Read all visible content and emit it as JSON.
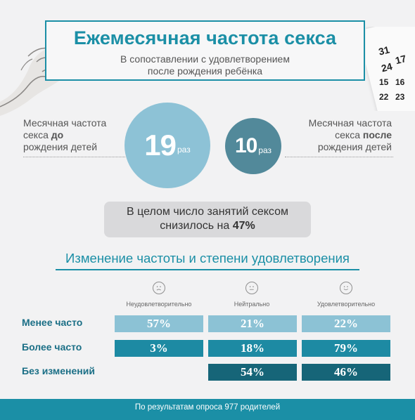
{
  "title": "Ежемесячная частота секса",
  "subtitle_line1": "В сопоставлении с удовлетворением",
  "subtitle_line2": "после рождения ребёнка",
  "before": {
    "line1": "Месячная частота",
    "line2_pre": "секса ",
    "line2_bold": "до",
    "line3": "рождения детей",
    "value": "19",
    "unit": "раз"
  },
  "after": {
    "line1": "Месячная частота",
    "line2_pre": "секса ",
    "line2_bold": "после",
    "line3": "рождения детей",
    "value": "10",
    "unit": "раз"
  },
  "summary": {
    "line1": "В целом число занятий сексом",
    "line2_pre": "снизилось на ",
    "line2_bold": "47%"
  },
  "section_title": "Изменение частоты и степени удовлетворения",
  "columns": {
    "col1": "Неудовлетворительно",
    "col2": "Нейтрально",
    "col3": "Удовлетворительно"
  },
  "rows": {
    "less": {
      "label": "Менее часто",
      "c1": "57%",
      "c2": "21%",
      "c3": "22%"
    },
    "more": {
      "label": "Более часто",
      "c1": "3%",
      "c2": "18%",
      "c3": "79%"
    },
    "same": {
      "label": "Без изменений",
      "c2": "54%",
      "c3": "46%"
    }
  },
  "calendar": {
    "n1": "31",
    "n2": "24",
    "n3": "17",
    "n4": "15",
    "n5": "16",
    "n6": "22",
    "n7": "23"
  },
  "footer": "По результатам опроса 977 родителей",
  "colors": {
    "accent": "#1b8fa6",
    "light": "#8cc2d5",
    "mid": "#1d8aa3",
    "dark": "#166578",
    "circle_before": "#8dc2d6",
    "circle_after": "#52899a"
  }
}
